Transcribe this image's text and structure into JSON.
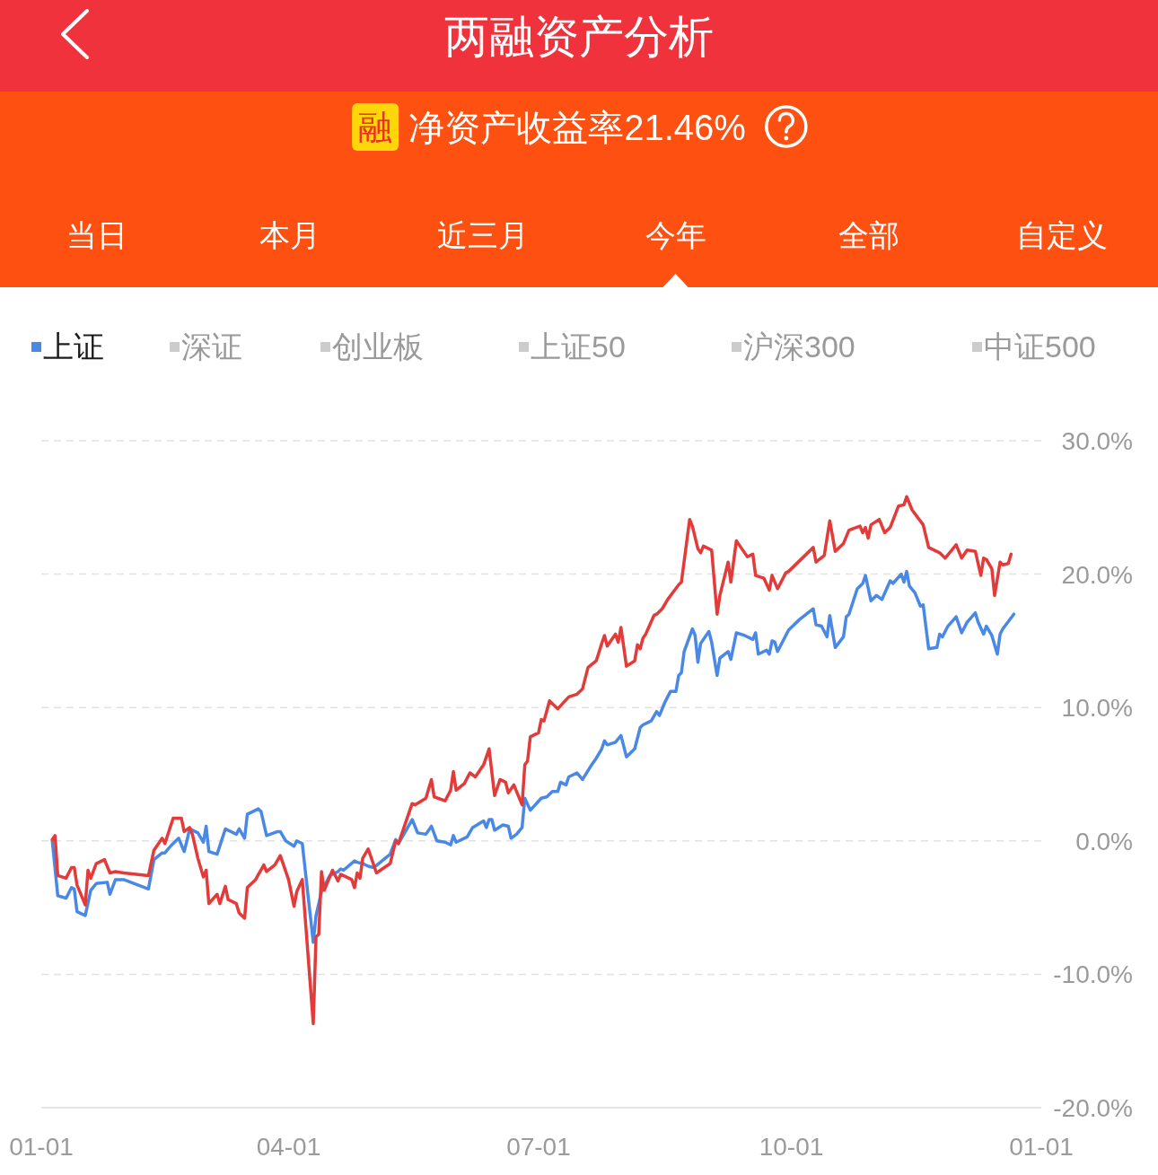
{
  "chart_data": {
    "type": "line",
    "title": "两融资产分析",
    "subtitle": "净资产收益率21.46%",
    "annotations": [
      "融",
      "当日",
      "本月",
      "近三月",
      "今年",
      "全部",
      "自定义",
      "深证",
      "创业板",
      "上证50",
      "沪深300",
      "中证500"
    ],
    "xlim": [
      "--01-01",
      "--12-31"
    ],
    "xticks": [
      {
        "value": "--01-01",
        "label": "01-01"
      },
      {
        "value": "--04-01",
        "label": "04-01"
      },
      {
        "value": "--07-01",
        "label": "07-01"
      },
      {
        "value": "--10-01",
        "label": "10-01"
      },
      {
        "value": "--12-31",
        "label": "01-01"
      }
    ],
    "ylim": [
      -20,
      30
    ],
    "yticks": [
      {
        "value": 30,
        "label": "30.0%"
      },
      {
        "value": 20,
        "label": "20.0%"
      },
      {
        "value": 10,
        "label": "10.0%"
      },
      {
        "value": 0,
        "label": "0.0%"
      },
      {
        "value": -10,
        "label": "-10.0%"
      },
      {
        "value": -20,
        "label": "-20.0%"
      }
    ],
    "grid": "y",
    "legend": "top left",
    "series": [
      {
        "color": "#e33a3a",
        "x": [
          "--01-05",
          "--01-06",
          "--01-07",
          "--01-10",
          "--01-12",
          "--01-13",
          "--01-14",
          "--01-17",
          "--01-18",
          "--01-19",
          "--01-21",
          "--01-24",
          "--01-26",
          "--01-28",
          "--01-31",
          "--02-09",
          "--02-11",
          "--02-14",
          "--02-15",
          "--02-18",
          "--02-21",
          "--02-22",
          "--02-24",
          "--02-25",
          "--02-27",
          "--03-01",
          "--03-02",
          "--03-03",
          "--03-06",
          "--03-07",
          "--03-09",
          "--03-10",
          "--03-13",
          "--03-14",
          "--03-16",
          "--03-17",
          "--03-20",
          "--03-23",
          "--03-24",
          "--03-27",
          "--03-29",
          "--04-01",
          "--04-03",
          "--04-04",
          "--04-06",
          "--04-10",
          "--04-11",
          "--04-12",
          "--04-13",
          "--04-14",
          "--04-17",
          "--04-19",
          "--04-20",
          "--04-24",
          "--04-25",
          "--04-26",
          "--04-27",
          "--04-28",
          "--04-30",
          "--05-03",
          "--05-08",
          "--05-10",
          "--05-11",
          "--05-16",
          "--05-17",
          "--05-21",
          "--05-23",
          "--05-24",
          "--05-28",
          "--05-30",
          "--05-31",
          "--06-01",
          "--06-04",
          "--06-06",
          "--06-08",
          "--06-11",
          "--06-13",
          "--06-15",
          "--06-17",
          "--06-19",
          "--06-20",
          "--06-22",
          "--06-25",
          "--06-26",
          "--06-27",
          "--06-28",
          "--07-01",
          "--07-02",
          "--07-03",
          "--07-05",
          "--07-08",
          "--07-12",
          "--07-15",
          "--07-17",
          "--07-19",
          "--07-22",
          "--07-24",
          "--07-25",
          "--07-26",
          "--07-29",
          "--07-30",
          "--07-31",
          "--08-02",
          "--08-05",
          "--08-06",
          "--08-07",
          "--08-08",
          "--08-09",
          "--08-12",
          "--08-13",
          "--08-15",
          "--08-17",
          "--08-21",
          "--08-22",
          "--08-25",
          "--08-26",
          "--08-28",
          "--08-29",
          "--08-30",
          "--09-02",
          "--09-04",
          "--09-05",
          "--09-08",
          "--09-09",
          "--09-11",
          "--09-13",
          "--09-15",
          "--09-17",
          "--09-18",
          "--09-21",
          "--09-23",
          "--09-24",
          "--09-26",
          "--09-29",
          "--09-30",
          "--10-09",
          "--10-10",
          "--10-13",
          "--10-15",
          "--10-17",
          "--10-20",
          "--10-22",
          "--10-26",
          "--10-27",
          "--10-28",
          "--10-29",
          "--10-30",
          "--11-02",
          "--11-04",
          "--11-06",
          "--11-09",
          "--11-11",
          "--11-12",
          "--11-14",
          "--11-18",
          "--11-20",
          "--11-24",
          "--11-26",
          "--11-30",
          "--12-02",
          "--12-04",
          "--12-07",
          "--12-08",
          "--12-09",
          "--12-10",
          "--12-11",
          "--12-13",
          "--12-14",
          "--12-16",
          "--12-17",
          "--12-19",
          "--12-20"
        ],
        "values": [
          0.1,
          0.4,
          -2.6,
          -2.8,
          -2.0,
          -2.0,
          -3.3,
          -4.8,
          -2.2,
          -2.8,
          -1.7,
          -1.4,
          -2.4,
          -2.3,
          -2.4,
          -2.6,
          -0.7,
          0.2,
          -0.2,
          1.7,
          1.7,
          0.7,
          1.0,
          0.5,
          -1.3,
          -2.7,
          -2.2,
          -4.7,
          -4.0,
          -4.7,
          -3.4,
          -4.4,
          -4.7,
          -5.4,
          -5.8,
          -3.5,
          -2.9,
          -1.8,
          -2.3,
          -1.8,
          -1.1,
          -2.9,
          -4.9,
          -3.8,
          -2.9,
          -13.7,
          -7.2,
          -7.0,
          -2.3,
          -3.7,
          -2.2,
          -3.0,
          -2.5,
          -2.9,
          -3.5,
          -2.4,
          -2.8,
          -1.3,
          -0.6,
          -2.4,
          -1.7,
          0.0,
          -0.2,
          2.8,
          2.7,
          3.2,
          4.6,
          3.3,
          3.0,
          3.8,
          5.2,
          3.8,
          4.3,
          5.1,
          4.8,
          5.7,
          6.9,
          3.4,
          4.6,
          4.4,
          3.6,
          4.2,
          2.7,
          5.7,
          6.0,
          7.8,
          8.1,
          9.1,
          9.0,
          10.5,
          9.9,
          10.8,
          11.0,
          11.4,
          13.0,
          13.5,
          14.8,
          15.4,
          14.6,
          15.5,
          14.9,
          16.0,
          13.1,
          13.5,
          14.7,
          14.4,
          15.2,
          15.5,
          16.9,
          17.0,
          17.4,
          18.1,
          19.2,
          19.4,
          24.1,
          23.6,
          21.9,
          21.6,
          22.1,
          21.8,
          17.0,
          18.4,
          20.9,
          19.4,
          22.5,
          21.9,
          21.3,
          21.5,
          19.9,
          19.7,
          18.8,
          19.9,
          18.9,
          20.1,
          20.2,
          22.0,
          20.9,
          21.4,
          24.0,
          21.7,
          22.3,
          23.3,
          23.6,
          23.1,
          23.5,
          22.7,
          23.7,
          24.1,
          23.1,
          23.5,
          25.1,
          25.2,
          25.8,
          24.8,
          23.7,
          22.0,
          21.6,
          21.2,
          22.2,
          21.2,
          21.8,
          21.7,
          20.8,
          19.9,
          21.2,
          21.1,
          20.4,
          18.4,
          20.9,
          20.7,
          20.8,
          21.5
        ]
      },
      {
        "name": "上证",
        "color": "#4a88e6",
        "x": [
          "--01-05",
          "--01-07",
          "--01-10",
          "--01-12",
          "--01-13",
          "--01-14",
          "--01-17",
          "--01-19",
          "--01-21",
          "--01-25",
          "--01-26",
          "--01-28",
          "--01-31",
          "--02-09",
          "--02-11",
          "--02-14",
          "--02-15",
          "--02-17",
          "--02-20",
          "--02-22",
          "--02-23",
          "--02-24",
          "--02-27",
          "--03-01",
          "--03-02",
          "--03-03",
          "--03-06",
          "--03-09",
          "--03-13",
          "--03-14",
          "--03-16",
          "--03-17",
          "--03-21",
          "--03-22",
          "--03-24",
          "--03-28",
          "--03-29",
          "--03-31",
          "--04-03",
          "--04-04",
          "--04-06",
          "--04-10",
          "--04-11",
          "--04-13",
          "--04-16",
          "--04-19",
          "--04-20",
          "--04-21",
          "--04-25",
          "--04-26",
          "--04-28",
          "--04-30",
          "--05-02",
          "--05-08",
          "--05-10",
          "--05-11",
          "--05-16",
          "--05-18",
          "--05-21",
          "--05-23",
          "--05-25",
          "--05-28",
          "--05-30",
          "--05-31",
          "--06-01",
          "--06-05",
          "--06-07",
          "--06-11",
          "--06-12",
          "--06-13",
          "--06-14",
          "--06-15",
          "--06-18",
          "--06-20",
          "--06-21",
          "--06-23",
          "--06-25",
          "--06-26",
          "--06-28",
          "--07-02",
          "--07-04",
          "--07-06",
          "--07-08",
          "--07-09",
          "--07-11",
          "--07-12",
          "--07-15",
          "--07-17",
          "--07-20",
          "--07-22",
          "--07-24",
          "--07-25",
          "--07-26",
          "--07-29",
          "--07-31",
          "--08-02",
          "--08-05",
          "--08-07",
          "--08-08",
          "--08-11",
          "--08-13",
          "--08-14",
          "--08-16",
          "--08-18",
          "--08-20",
          "--08-21",
          "--08-22",
          "--08-23",
          "--08-26",
          "--08-27",
          "--08-28",
          "--08-29",
          "--09-01",
          "--09-02",
          "--09-04",
          "--09-05",
          "--09-08",
          "--09-09",
          "--09-11",
          "--09-14",
          "--09-17",
          "--09-18",
          "--09-19",
          "--09-22",
          "--09-23",
          "--09-24",
          "--09-25",
          "--09-26",
          "--09-30",
          "--10-04",
          "--10-09",
          "--10-10",
          "--10-12",
          "--10-14",
          "--10-15",
          "--10-17",
          "--10-20",
          "--10-21",
          "--10-22",
          "--10-25",
          "--10-27",
          "--10-28",
          "--10-30",
          "--11-01",
          "--11-03",
          "--11-06",
          "--11-07",
          "--11-10",
          "--11-11",
          "--11-12",
          "--11-13",
          "--11-15",
          "--11-17",
          "--11-18",
          "--11-20",
          "--11-23",
          "--11-24",
          "--11-25",
          "--11-27",
          "--11-30",
          "--12-02",
          "--12-04",
          "--12-07",
          "--12-08",
          "--12-10",
          "--12-11",
          "--12-13",
          "--12-15",
          "--12-16",
          "--12-17",
          "--12-21"
        ],
        "values": [
          0.0,
          -4.1,
          -4.3,
          -3.5,
          -3.6,
          -5.3,
          -5.6,
          -3.7,
          -3.2,
          -3.1,
          -4.0,
          -2.9,
          -2.9,
          -3.6,
          -1.4,
          -0.9,
          -0.9,
          -0.4,
          0.2,
          -0.8,
          0.0,
          0.9,
          0.6,
          -0.1,
          1.1,
          -0.8,
          -1.0,
          0.9,
          0.5,
          0.9,
          0.2,
          2.0,
          2.4,
          2.2,
          0.4,
          0.7,
          0.7,
          0.0,
          -0.4,
          0.0,
          -0.2,
          -7.6,
          -5.6,
          -3.8,
          -2.6,
          -2.3,
          -2.1,
          -2.2,
          -1.5,
          -1.6,
          -1.7,
          -1.9,
          -2.0,
          -1.0,
          0.1,
          -0.2,
          1.6,
          0.6,
          0.5,
          1.1,
          0.0,
          -0.1,
          -0.3,
          0.4,
          -0.1,
          0.3,
          1.0,
          1.5,
          1.0,
          1.6,
          1.6,
          0.8,
          1.2,
          1.1,
          0.2,
          0.5,
          1.0,
          3.2,
          2.3,
          3.2,
          3.3,
          3.7,
          3.7,
          4.4,
          4.2,
          4.8,
          5.1,
          4.6,
          5.6,
          6.2,
          6.9,
          7.5,
          7.2,
          7.4,
          7.9,
          6.3,
          6.9,
          8.5,
          8.7,
          9.0,
          9.7,
          9.4,
          10.4,
          11.2,
          11.2,
          12.4,
          12.6,
          14.2,
          15.9,
          15.4,
          13.4,
          14.8,
          15.7,
          14.9,
          12.4,
          13.7,
          14.2,
          13.6,
          15.6,
          15.4,
          15.1,
          15.6,
          14.0,
          14.3,
          14.0,
          15.0,
          14.9,
          14.2,
          15.8,
          16.6,
          17.4,
          16.2,
          16.1,
          15.3,
          16.9,
          14.5,
          15.3,
          16.8,
          17.0,
          18.9,
          19.3,
          19.9,
          18.0,
          18.4,
          18.1,
          19.5,
          19.3,
          20.0,
          19.4,
          20.2,
          19.1,
          18.6,
          17.6,
          17.7,
          14.4,
          14.5,
          15.5,
          15.3,
          16.1,
          16.8,
          15.6,
          16.4,
          17.1,
          16.4,
          15.5,
          16.1,
          15.4,
          14.0,
          15.5,
          15.9,
          17.0
        ]
      }
    ]
  }
}
